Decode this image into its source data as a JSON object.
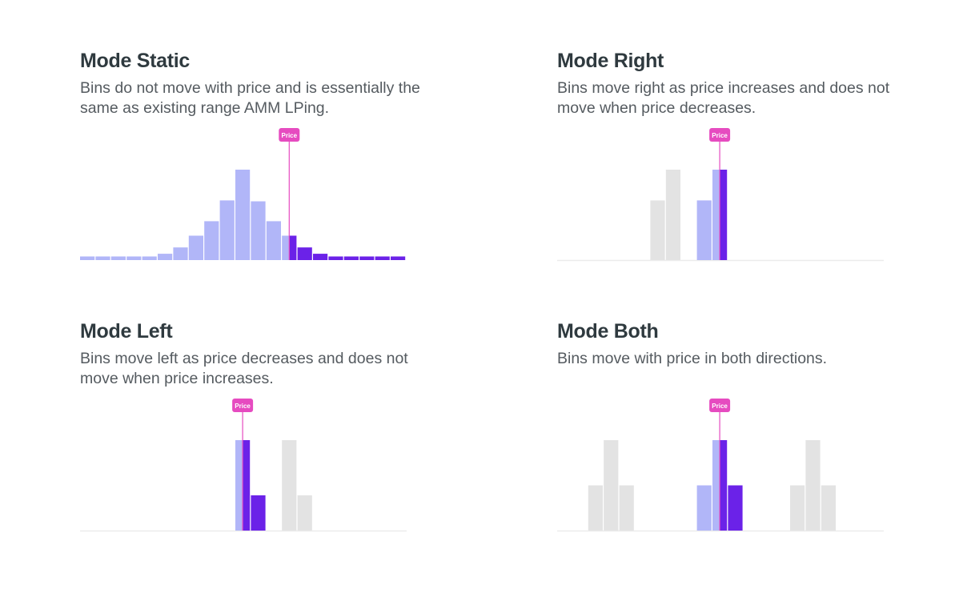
{
  "colors": {
    "lavender": "#b1b6f8",
    "purple": "#6b22e8",
    "gray": "#e3e3e3",
    "marker": "#e64bc0",
    "baseline": "#ececec"
  },
  "price_label": "Price",
  "panels": [
    {
      "id": "static",
      "title": "Mode Static",
      "description": "Bins do not move with price and is essentially the same as existing range AMM LPing.",
      "bins": [
        {
          "slot": 0,
          "level": 0.04,
          "color": "lavender"
        },
        {
          "slot": 1,
          "level": 0.04,
          "color": "lavender"
        },
        {
          "slot": 2,
          "level": 0.04,
          "color": "lavender"
        },
        {
          "slot": 3,
          "level": 0.04,
          "color": "lavender"
        },
        {
          "slot": 4,
          "level": 0.04,
          "color": "lavender"
        },
        {
          "slot": 5,
          "level": 0.07,
          "color": "lavender"
        },
        {
          "slot": 6,
          "level": 0.14,
          "color": "lavender"
        },
        {
          "slot": 7,
          "level": 0.27,
          "color": "lavender"
        },
        {
          "slot": 8,
          "level": 0.43,
          "color": "lavender"
        },
        {
          "slot": 9,
          "level": 0.66,
          "color": "lavender"
        },
        {
          "slot": 10,
          "level": 1.0,
          "color": "lavender"
        },
        {
          "slot": 11,
          "level": 0.65,
          "color": "lavender"
        },
        {
          "slot": 12,
          "level": 0.43,
          "color": "lavender"
        },
        {
          "slot": 13,
          "level": 0.27,
          "color": "split"
        },
        {
          "slot": 14,
          "level": 0.14,
          "color": "purple"
        },
        {
          "slot": 15,
          "level": 0.07,
          "color": "purple"
        },
        {
          "slot": 16,
          "level": 0.04,
          "color": "purple"
        },
        {
          "slot": 17,
          "level": 0.04,
          "color": "purple"
        },
        {
          "slot": 18,
          "level": 0.04,
          "color": "purple"
        },
        {
          "slot": 19,
          "level": 0.04,
          "color": "purple"
        },
        {
          "slot": 20,
          "level": 0.04,
          "color": "purple"
        }
      ],
      "price_slot": 13.5,
      "show_baseline": false
    },
    {
      "id": "right",
      "title": "Mode Right",
      "description": "Bins move right as price increases and does not move when price decreases.",
      "bins": [
        {
          "slot": 6,
          "level": 0.66,
          "color": "gray"
        },
        {
          "slot": 7,
          "level": 1.0,
          "color": "gray"
        },
        {
          "slot": 9,
          "level": 0.66,
          "color": "lavender"
        },
        {
          "slot": 10,
          "level": 1.0,
          "color": "split"
        }
      ],
      "price_slot": 10.5,
      "show_baseline": true
    },
    {
      "id": "left",
      "title": "Mode Left",
      "description": "Bins move left as price decreases and does not move when price increases.",
      "bins": [
        {
          "slot": 10,
          "level": 1.0,
          "color": "split"
        },
        {
          "slot": 11,
          "level": 0.39,
          "color": "purple"
        },
        {
          "slot": 13,
          "level": 1.0,
          "color": "gray"
        },
        {
          "slot": 14,
          "level": 0.39,
          "color": "gray"
        }
      ],
      "price_slot": 10.5,
      "show_baseline": true
    },
    {
      "id": "both",
      "title": "Mode Both",
      "description": "Bins move with price in both directions.",
      "bins": [
        {
          "slot": 2,
          "level": 0.5,
          "color": "gray"
        },
        {
          "slot": 3,
          "level": 1.0,
          "color": "gray"
        },
        {
          "slot": 4,
          "level": 0.5,
          "color": "gray"
        },
        {
          "slot": 9,
          "level": 0.5,
          "color": "lavender"
        },
        {
          "slot": 10,
          "level": 1.0,
          "color": "split"
        },
        {
          "slot": 11,
          "level": 0.5,
          "color": "purple"
        },
        {
          "slot": 15,
          "level": 0.5,
          "color": "gray"
        },
        {
          "slot": 16,
          "level": 1.0,
          "color": "gray"
        },
        {
          "slot": 17,
          "level": 0.5,
          "color": "gray"
        }
      ],
      "price_slot": 10.5,
      "show_baseline": true
    }
  ]
}
